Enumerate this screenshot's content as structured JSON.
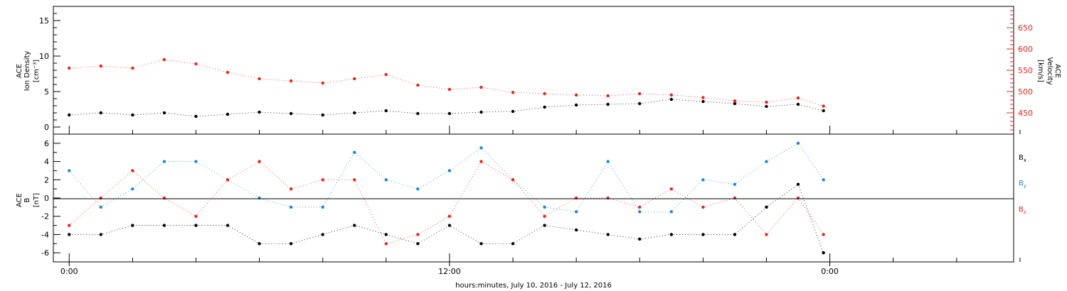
{
  "colors": {
    "bx": "#000000",
    "by": "#1f86d6",
    "bz": "#e8241c",
    "density": "#000000",
    "velocity": "#e8241c"
  },
  "xaxis": {
    "label": "hours:minutes, July 10, 2016 - July 12, 2016",
    "major_ticks": [
      {
        "t": 0,
        "label": "0:00"
      },
      {
        "t": 12,
        "label": "12:00"
      },
      {
        "t": 24,
        "label": "0:00"
      }
    ],
    "minor_tick_hours": [
      2,
      4,
      6,
      8,
      10,
      14,
      16,
      18,
      20,
      22,
      26,
      28,
      30
    ],
    "range_hours": [
      -0.5,
      29.8
    ]
  },
  "chart_data": [
    {
      "type": "scatter",
      "title": "",
      "xlabel": "hours:minutes, July 10, 2016 - July 12, 2016",
      "ylabel_left": [
        "ACE",
        "Ion Density",
        "[cm⁻³]"
      ],
      "ylabel_right": [
        "ACE",
        "Velocity",
        "[km/s]"
      ],
      "ylim_left": [
        -1,
        17
      ],
      "ylim_right": [
        400,
        700
      ],
      "yticks_left": [
        "0",
        "5",
        "10",
        "15"
      ],
      "yticks_right": [
        "450",
        "500",
        "550",
        "600",
        "650"
      ],
      "series": [
        {
          "axis": "left",
          "x_hours": [
            0,
            1,
            2,
            3,
            4,
            5,
            6,
            7,
            8,
            9,
            10,
            11,
            12,
            13,
            14,
            15,
            16,
            17,
            18,
            19,
            20,
            21,
            22,
            23,
            23.8
          ],
          "y": [
            1.7,
            2.0,
            1.7,
            2.0,
            1.5,
            1.8,
            2.1,
            1.9,
            1.7,
            2.0,
            2.3,
            1.9,
            1.9,
            2.1,
            2.2,
            2.8,
            3.1,
            3.2,
            3.3,
            3.9,
            3.6,
            3.3,
            2.9,
            3.2,
            2.3
          ]
        },
        {
          "axis": "right",
          "x_hours": [
            0,
            1,
            2,
            3,
            4,
            5,
            6,
            7,
            8,
            9,
            10,
            11,
            12,
            13,
            14,
            15,
            16,
            17,
            18,
            19,
            20,
            21,
            22,
            23,
            23.8
          ],
          "y": [
            555,
            560,
            555,
            575,
            565,
            545,
            530,
            525,
            520,
            530,
            540,
            515,
            505,
            510,
            498,
            495,
            492,
            490,
            495,
            492,
            486,
            478,
            475,
            485,
            466
          ]
        }
      ]
    },
    {
      "type": "scatter",
      "title": "",
      "ylabel_left": [
        "ACE",
        "B",
        "[nT]"
      ],
      "ylim": [
        -7,
        7
      ],
      "yticks": [
        "-6",
        "-4",
        "-2",
        "0",
        "2",
        "4",
        "6"
      ],
      "zero_line": true,
      "series": [
        {
          "name": "B",
          "sub": "x",
          "x_hours": [
            0,
            1,
            2,
            3,
            4,
            5,
            6,
            7,
            8,
            9,
            10,
            11,
            12,
            13,
            14,
            15,
            16,
            17,
            18,
            19,
            20,
            21,
            22,
            23,
            23.8
          ],
          "y": [
            -4.0,
            -4.0,
            -3.0,
            -3.0,
            -3.0,
            -3.0,
            -5.0,
            -5.0,
            -4.0,
            -3.0,
            -4.0,
            -5.0,
            -3.0,
            -5.0,
            -5.0,
            -3.0,
            -3.5,
            -4.0,
            -4.5,
            -4.0,
            -4.0,
            -4.0,
            -1.0,
            1.5,
            -6.0
          ]
        },
        {
          "name": "B",
          "sub": "y",
          "x_hours": [
            0,
            1,
            2,
            3,
            4,
            5,
            6,
            7,
            8,
            9,
            10,
            11,
            12,
            13,
            14,
            15,
            16,
            17,
            18,
            19,
            20,
            21,
            22,
            23,
            23.8
          ],
          "y": [
            3.0,
            -1.0,
            1.0,
            4.0,
            4.0,
            2.0,
            0.0,
            -1.0,
            -1.0,
            5.0,
            2.0,
            1.0,
            3.0,
            5.5,
            2.0,
            -1.0,
            -1.5,
            4.0,
            -1.5,
            -1.5,
            2.0,
            1.5,
            4.0,
            6.0,
            2.0
          ]
        },
        {
          "name": "B",
          "sub": "z",
          "x_hours": [
            0,
            1,
            2,
            3,
            4,
            5,
            6,
            7,
            8,
            9,
            10,
            11,
            12,
            13,
            14,
            15,
            16,
            17,
            18,
            19,
            20,
            21,
            22,
            23,
            23.8
          ],
          "y": [
            -3.0,
            0.0,
            3.0,
            0.0,
            -2.0,
            2.0,
            4.0,
            1.0,
            2.0,
            2.0,
            -5.0,
            -4.0,
            -2.0,
            4.0,
            2.0,
            -2.0,
            0.0,
            0.0,
            -1.0,
            1.0,
            -1.0,
            0.0,
            -4.0,
            0.0,
            -4.0
          ]
        }
      ]
    }
  ],
  "legend_bottom_panel": [
    {
      "label": "B",
      "sub": "x"
    },
    {
      "label": "B",
      "sub": "y"
    },
    {
      "label": "B",
      "sub": "z"
    }
  ]
}
